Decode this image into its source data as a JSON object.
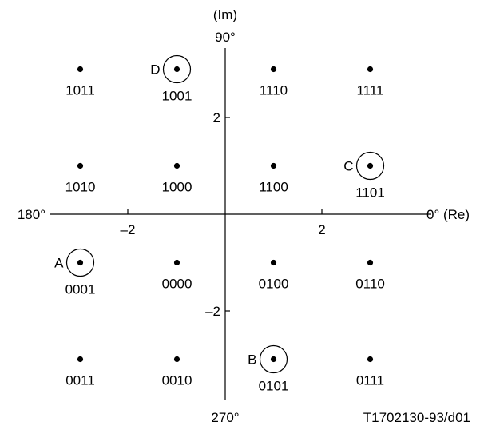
{
  "axes": {
    "im_label": "(Im)",
    "top_label": "90°",
    "bottom_label": "270°",
    "left_label": "180°",
    "right_label": "0° (Re)",
    "ticks": {
      "x": [
        {
          "value": -2,
          "text": "–2"
        },
        {
          "value": 2,
          "text": "2"
        }
      ],
      "y": [
        {
          "value": 2,
          "text": "2"
        },
        {
          "value": -2,
          "text": "–2"
        }
      ]
    }
  },
  "constellation": {
    "levels": [
      -3,
      -1,
      1,
      3
    ],
    "points": [
      {
        "code": "1011",
        "re": -3,
        "im": 3
      },
      {
        "code": "1001",
        "re": -1,
        "im": 3,
        "marker": "D"
      },
      {
        "code": "1110",
        "re": 1,
        "im": 3
      },
      {
        "code": "1111",
        "re": 3,
        "im": 3
      },
      {
        "code": "1010",
        "re": -3,
        "im": 1
      },
      {
        "code": "1000",
        "re": -1,
        "im": 1
      },
      {
        "code": "1100",
        "re": 1,
        "im": 1
      },
      {
        "code": "1101",
        "re": 3,
        "im": 1,
        "marker": "C"
      },
      {
        "code": "0001",
        "re": -3,
        "im": -1,
        "marker": "A"
      },
      {
        "code": "0000",
        "re": -1,
        "im": -1
      },
      {
        "code": "0100",
        "re": 1,
        "im": -1
      },
      {
        "code": "0110",
        "re": 3,
        "im": -1
      },
      {
        "code": "0011",
        "re": -3,
        "im": -3
      },
      {
        "code": "0010",
        "re": -1,
        "im": -3
      },
      {
        "code": "0101",
        "re": 1,
        "im": -3,
        "marker": "B"
      },
      {
        "code": "0111",
        "re": 3,
        "im": -3
      }
    ]
  },
  "figure_id": "T1702130-93/d01"
}
